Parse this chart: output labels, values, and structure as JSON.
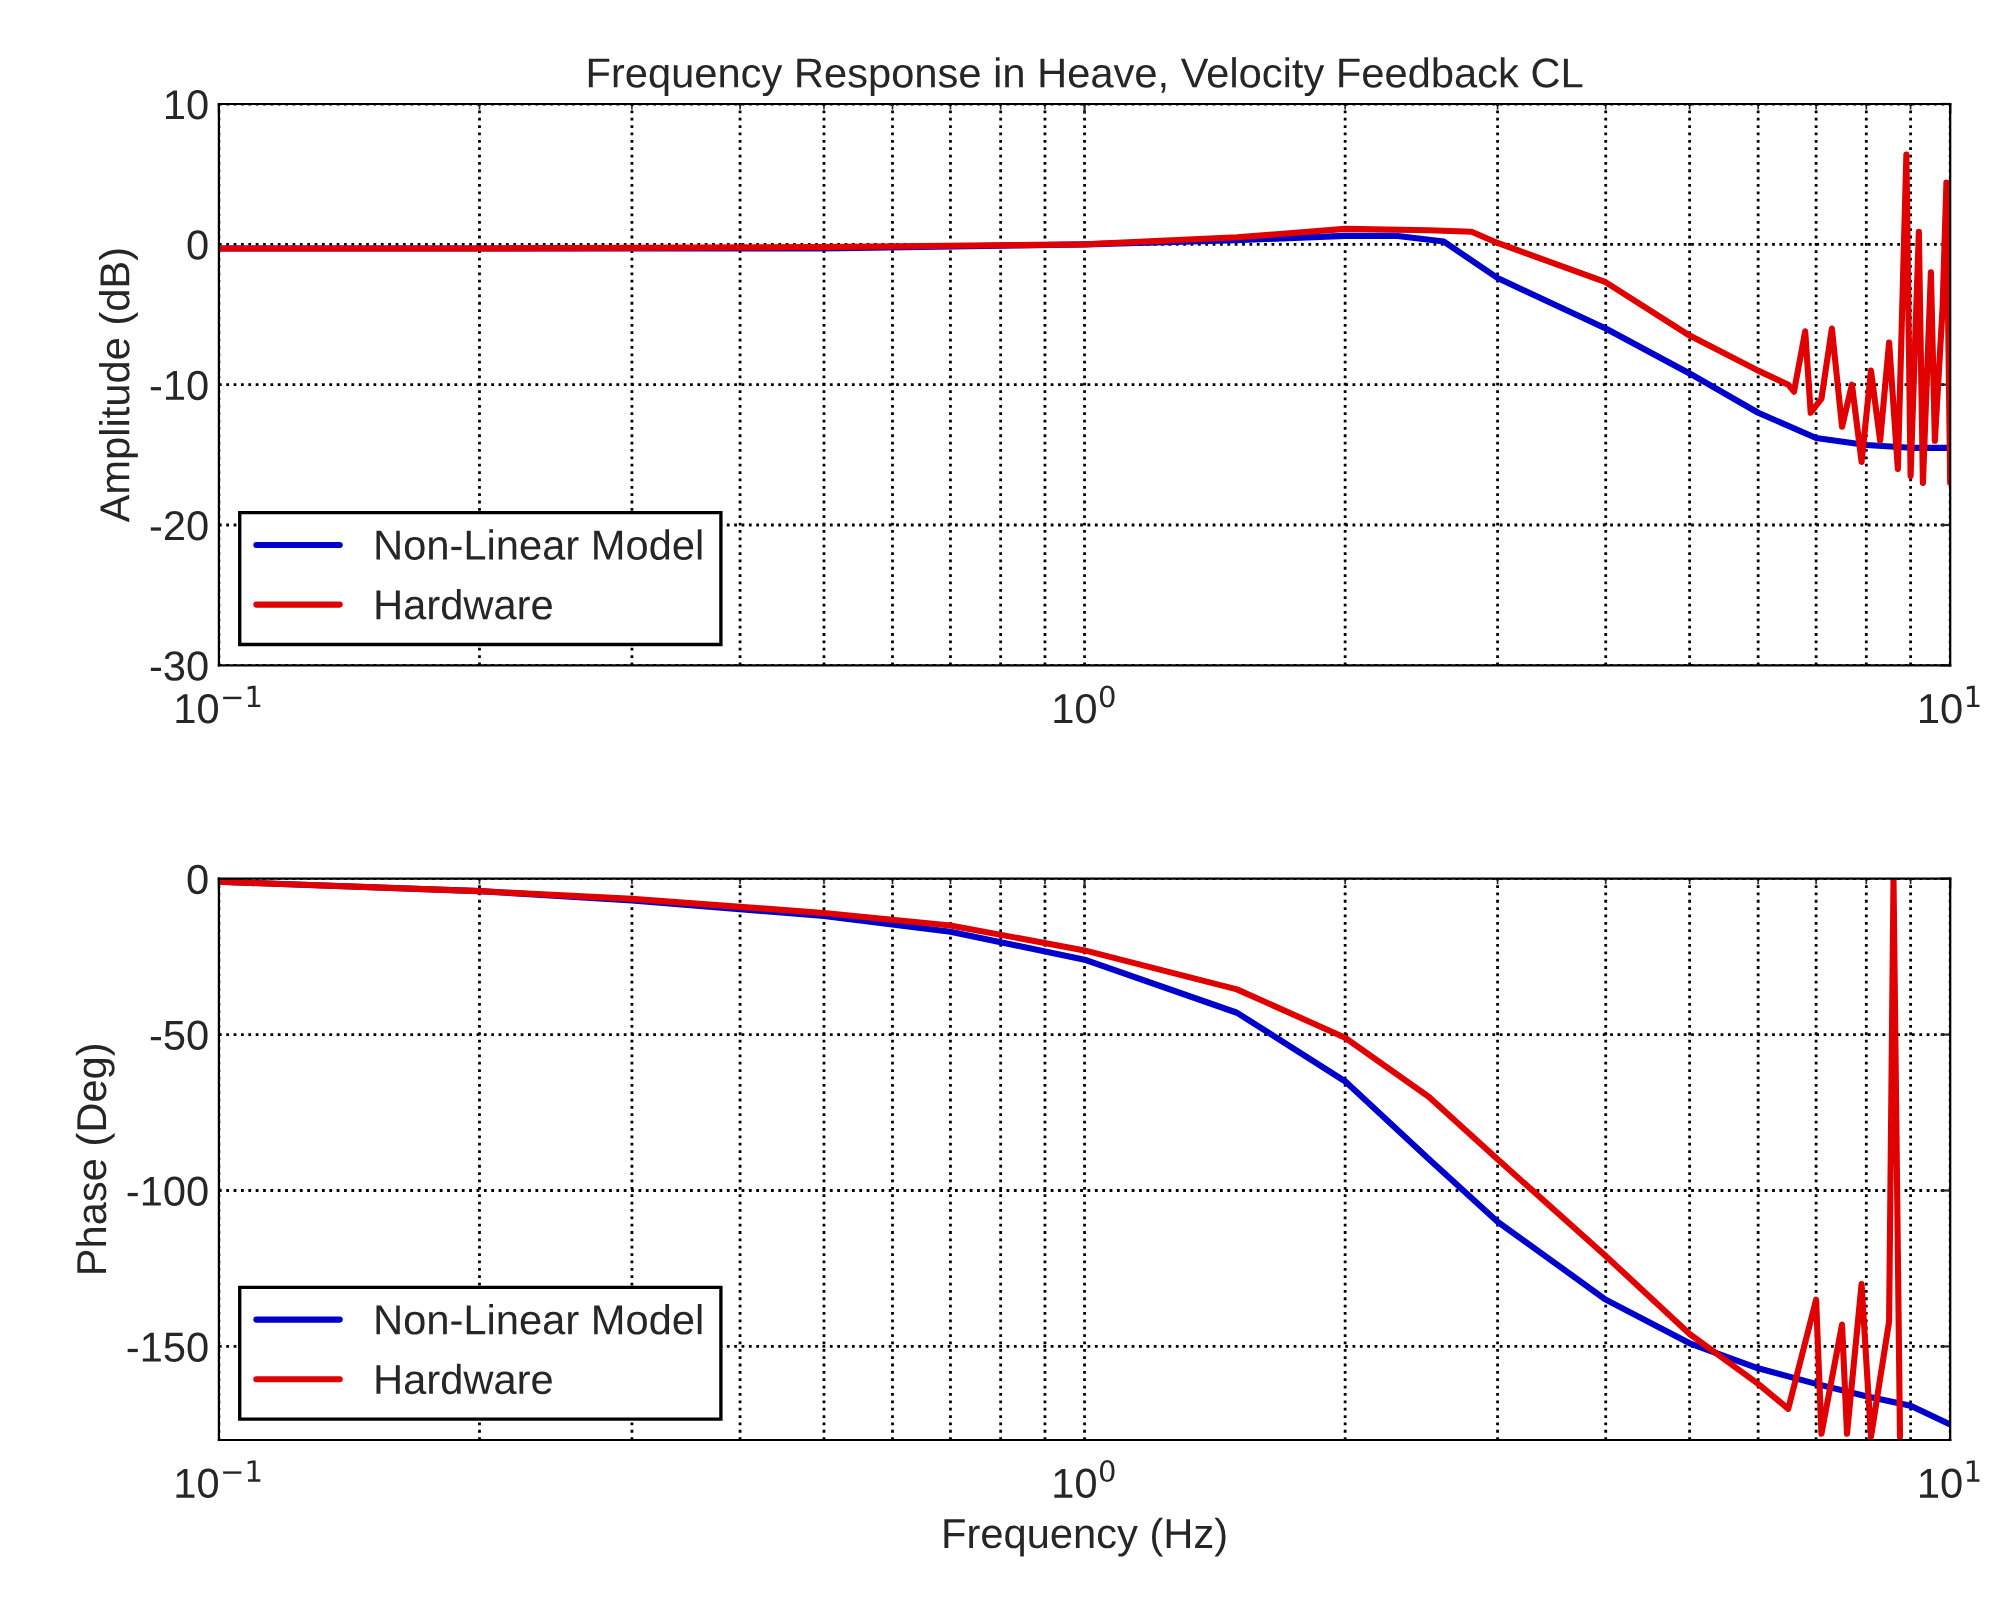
{
  "chart_data": [
    {
      "type": "line",
      "title": "Frequency Response in Heave, Velocity Feedback CL",
      "ylabel": "Amplitude (dB)",
      "log": "x",
      "xlim": [
        0.1,
        10
      ],
      "xticks": [
        {
          "value": 0.1,
          "label": "10$^{−1}$"
        },
        {
          "value": 1,
          "label": "10$^{0}$"
        },
        {
          "value": 10,
          "label": "10$^{1}$"
        }
      ],
      "ylim": [
        -30,
        10
      ],
      "yticks": [
        -30,
        -20,
        -10,
        0,
        10
      ],
      "grid": true,
      "legend": "lower left",
      "line_style": "solid",
      "series": [
        {
          "name": "Non-Linear Model",
          "color": "#0000cc",
          "x": [
            0.1,
            0.2,
            0.5,
            1,
            1.5,
            2,
            2.3,
            2.6,
            3,
            4,
            5,
            6,
            7,
            8,
            9,
            10
          ],
          "values": [
            -0.3,
            -0.3,
            -0.3,
            0,
            0.3,
            0.6,
            0.6,
            0.2,
            -2.4,
            -6,
            -9.2,
            -12,
            -13.8,
            -14.3,
            -14.5,
            -14.5
          ]
        },
        {
          "name": "Hardware",
          "color": "#e00000",
          "x": [
            0.1,
            0.2,
            0.5,
            1,
            1.5,
            2,
            2.5,
            2.8,
            3,
            4,
            5,
            6,
            6.5,
            6.6,
            6.8,
            6.9,
            7.1,
            7.3,
            7.5,
            7.7,
            7.9,
            8.1,
            8.3,
            8.5,
            8.7,
            8.9,
            9.0,
            9.2,
            9.3,
            9.5,
            9.6,
            9.8,
            9.9,
            10
          ],
          "values": [
            -0.3,
            -0.3,
            -0.2,
            0,
            0.5,
            1.1,
            1.0,
            0.9,
            0.1,
            -2.7,
            -6.5,
            -9,
            -10,
            -10.5,
            -6.2,
            -12,
            -11,
            -6,
            -13,
            -10,
            -15.5,
            -9,
            -14,
            -7,
            -16,
            6.4,
            -16.5,
            0.9,
            -17,
            -2,
            -14,
            -4.5,
            4.4,
            -17
          ]
        }
      ]
    },
    {
      "type": "line",
      "xlabel": "Frequency (Hz)",
      "ylabel": "Phase (Deg)",
      "log": "x",
      "xlim": [
        0.1,
        10
      ],
      "xticks": [
        {
          "value": 0.1,
          "label": "10$^{−1}$"
        },
        {
          "value": 1,
          "label": "10$^{0}$"
        },
        {
          "value": 10,
          "label": "10$^{1}$"
        }
      ],
      "ylim": [
        -180,
        0
      ],
      "yticks": [
        -150,
        -100,
        -50,
        0
      ],
      "grid": true,
      "legend": "lower left",
      "line_style": "solid",
      "series": [
        {
          "name": "Non-Linear Model",
          "color": "#0000cc",
          "x": [
            0.1,
            0.2,
            0.3,
            0.5,
            0.7,
            1,
            1.5,
            2,
            2.5,
            3,
            4,
            5,
            6,
            7,
            8,
            9,
            10
          ],
          "values": [
            -1,
            -4,
            -7,
            -12,
            -17,
            -26,
            -43,
            -65,
            -90,
            -110,
            -135,
            -149,
            -157,
            -162,
            -166,
            -169,
            -175
          ]
        },
        {
          "name": "Hardware",
          "color": "#e00000",
          "x": [
            0.1,
            0.2,
            0.3,
            0.5,
            0.7,
            1,
            1.5,
            2,
            2.5,
            3,
            4,
            5,
            6,
            6.5,
            7,
            7.1,
            7.5,
            7.6,
            7.9,
            8.1,
            8.5,
            8.6,
            8.75
          ],
          "values": [
            -1,
            -4,
            -6.5,
            -11,
            -15,
            -23,
            -35.5,
            -51,
            -70,
            -90,
            -121,
            -146,
            -162,
            -170,
            -135,
            -178,
            -143,
            -178,
            -130,
            -179,
            -142,
            0,
            -179
          ]
        }
      ]
    }
  ]
}
